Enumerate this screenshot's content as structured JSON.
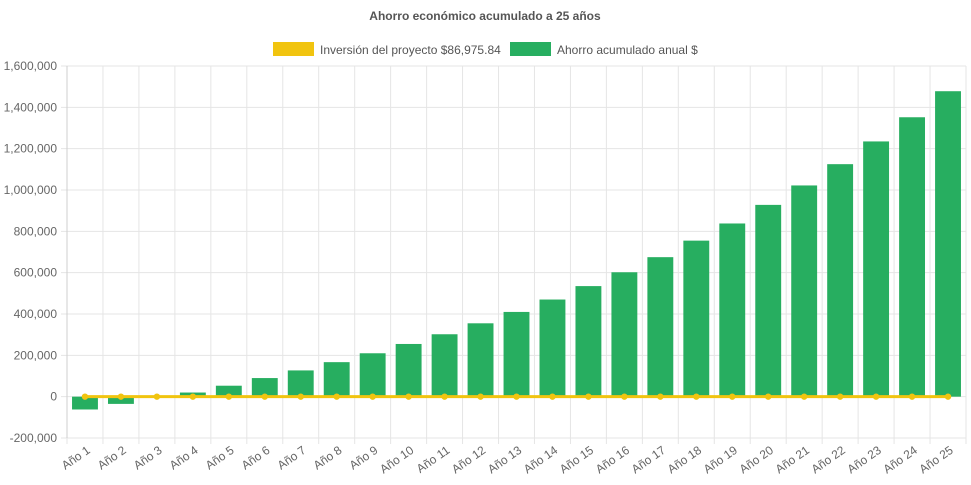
{
  "chart_data": {
    "type": "bar",
    "title": "Ahorro económico acumulado a 25 años",
    "xlabel": "",
    "ylabel": "",
    "grid": true,
    "legend_position": "top",
    "ylim": [
      -200000,
      1600000
    ],
    "y_ticks": [
      "1,600,000",
      "1,400,000",
      "1,200,000",
      "1,000,000",
      "800,000",
      "600,000",
      "400,000",
      "200,000",
      "0",
      "-200,000"
    ],
    "categories": [
      "Año 1",
      "Año 2",
      "Año 3",
      "Año 4",
      "Año 5",
      "Año 6",
      "Año 7",
      "Año 8",
      "Año 9",
      "Año 10",
      "Año 11",
      "Año 12",
      "Año 13",
      "Año 14",
      "Año 15",
      "Año 16",
      "Año 17",
      "Año 18",
      "Año 19",
      "Año 20",
      "Año 21",
      "Año 22",
      "Año 23",
      "Año 24",
      "Año 25"
    ],
    "series": [
      {
        "name": "Inversión del proyecto $86,975.84",
        "kind": "line",
        "color": "#f1c40f",
        "values": [
          0,
          0,
          0,
          0,
          0,
          0,
          0,
          0,
          0,
          0,
          0,
          0,
          0,
          0,
          0,
          0,
          0,
          0,
          0,
          0,
          0,
          0,
          0,
          0,
          0
        ]
      },
      {
        "name": "Ahorro acumulado anual $",
        "kind": "bar",
        "color": "#27ae60",
        "values": [
          -62000,
          -35000,
          -5000,
          20000,
          53000,
          90000,
          127000,
          167000,
          210000,
          255000,
          302000,
          355000,
          410000,
          470000,
          535000,
          602000,
          675000,
          755000,
          838000,
          928000,
          1022000,
          1125000,
          1235000,
          1352000,
          1478000
        ]
      }
    ]
  }
}
